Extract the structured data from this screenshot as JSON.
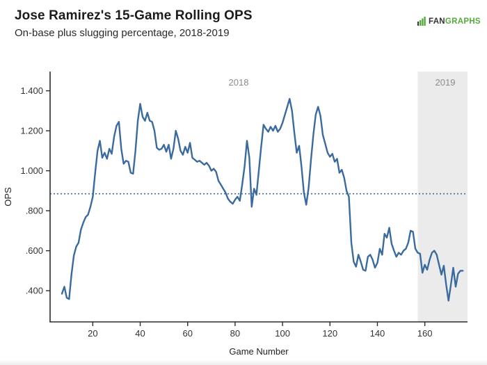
{
  "header": {
    "title": "Jose Ramirez's 15-Game Rolling OPS",
    "subtitle": "On-base plus slugging percentage, 2018-2019"
  },
  "logo": {
    "fan": "FAN",
    "graphs": "GRAPHS",
    "green": "#54ab3b",
    "dark": "#333333"
  },
  "chart_data": {
    "type": "line",
    "title": "Jose Ramirez's 15-Game Rolling OPS",
    "subtitle": "On-base plus slugging percentage, 2018-2019",
    "xlabel": "Game Number",
    "ylabel": "OPS",
    "xlim": [
      2,
      178
    ],
    "ylim": [
      0.244,
      1.496
    ],
    "grid": false,
    "legend": "none",
    "x_ticks": [
      20,
      40,
      60,
      80,
      100,
      120,
      140,
      160
    ],
    "y_ticks": [
      ".400",
      ".600",
      ".800",
      "1.000",
      "1.200",
      "1.400"
    ],
    "y_tick_values": [
      0.4,
      0.6,
      0.8,
      1.0,
      1.2,
      1.4
    ],
    "reference_line": {
      "value": 0.885,
      "style": "dotted",
      "color": "#3a6a9e"
    },
    "regions": [
      {
        "label": "2019",
        "from": 157,
        "to": 178,
        "fill": "#ebebeb"
      }
    ],
    "annotations": [
      {
        "label": "2018",
        "x": 81,
        "y": 1.443
      },
      {
        "label": "2019",
        "x": 168,
        "y": 1.443
      }
    ],
    "series": [
      {
        "name": "15-game rolling OPS",
        "color": "#3a6a9e",
        "x": [
          7,
          8,
          9,
          10,
          11,
          12,
          13,
          14,
          15,
          16,
          17,
          18,
          19,
          20,
          21,
          22,
          23,
          24,
          25,
          26,
          27,
          28,
          29,
          30,
          31,
          32,
          33,
          34,
          35,
          36,
          37,
          38,
          39,
          40,
          41,
          42,
          43,
          44,
          45,
          46,
          47,
          48,
          49,
          50,
          51,
          52,
          53,
          54,
          55,
          56,
          57,
          58,
          59,
          60,
          61,
          62,
          63,
          64,
          65,
          66,
          67,
          68,
          69,
          70,
          71,
          72,
          73,
          74,
          75,
          76,
          77,
          78,
          79,
          80,
          81,
          82,
          83,
          84,
          85,
          86,
          87,
          88,
          89,
          90,
          91,
          92,
          93,
          94,
          95,
          96,
          97,
          98,
          99,
          100,
          101,
          102,
          103,
          104,
          105,
          106,
          107,
          108,
          109,
          110,
          111,
          112,
          113,
          114,
          115,
          116,
          117,
          118,
          119,
          120,
          121,
          122,
          123,
          124,
          125,
          126,
          127,
          128,
          129,
          130,
          131,
          132,
          133,
          134,
          135,
          136,
          137,
          138,
          139,
          140,
          141,
          142,
          143,
          144,
          145,
          146,
          147,
          148,
          149,
          150,
          151,
          152,
          153,
          154,
          155,
          156,
          157,
          158,
          159,
          160,
          161,
          162,
          163,
          164,
          165,
          166,
          167,
          168,
          169,
          170,
          171,
          172,
          173,
          174,
          175,
          176
        ],
        "y": [
          0.385,
          0.42,
          0.365,
          0.358,
          0.48,
          0.575,
          0.62,
          0.64,
          0.705,
          0.74,
          0.768,
          0.78,
          0.82,
          0.87,
          0.99,
          1.1,
          1.15,
          1.065,
          1.09,
          1.06,
          1.11,
          1.085,
          1.17,
          1.225,
          1.245,
          1.11,
          1.035,
          1.05,
          1.045,
          0.99,
          0.985,
          1.1,
          1.25,
          1.335,
          1.27,
          1.25,
          1.29,
          1.25,
          1.245,
          1.2,
          1.115,
          1.105,
          1.11,
          1.13,
          1.095,
          1.13,
          1.06,
          1.11,
          1.2,
          1.16,
          1.1,
          1.08,
          1.12,
          1.09,
          1.14,
          1.065,
          1.055,
          1.045,
          1.05,
          1.04,
          1.03,
          1.04,
          1.025,
          1.0,
          1.01,
          0.995,
          0.95,
          0.93,
          0.91,
          0.89,
          0.86,
          0.845,
          0.835,
          0.855,
          0.87,
          0.85,
          0.93,
          1.02,
          1.15,
          1.065,
          0.82,
          0.91,
          0.88,
          1.0,
          1.12,
          1.23,
          1.21,
          1.195,
          1.22,
          1.2,
          1.225,
          1.195,
          1.21,
          1.24,
          1.28,
          1.32,
          1.36,
          1.3,
          1.19,
          1.09,
          1.125,
          1.02,
          0.89,
          0.83,
          0.915,
          1.055,
          1.18,
          1.28,
          1.32,
          1.275,
          1.18,
          1.135,
          1.09,
          1.07,
          1.085,
          1.045,
          1.06,
          0.99,
          1.005,
          0.965,
          0.9,
          0.87,
          0.64,
          0.545,
          0.52,
          0.58,
          0.545,
          0.505,
          0.5,
          0.57,
          0.58,
          0.555,
          0.515,
          0.54,
          0.61,
          0.58,
          0.685,
          0.665,
          0.715,
          0.635,
          0.6,
          0.57,
          0.59,
          0.58,
          0.6,
          0.61,
          0.64,
          0.7,
          0.695,
          0.61,
          0.59,
          0.585,
          0.49,
          0.53,
          0.505,
          0.555,
          0.59,
          0.6,
          0.58,
          0.53,
          0.48,
          0.525,
          0.43,
          0.35,
          0.43,
          0.515,
          0.42,
          0.485,
          0.5,
          0.5
        ]
      }
    ]
  }
}
